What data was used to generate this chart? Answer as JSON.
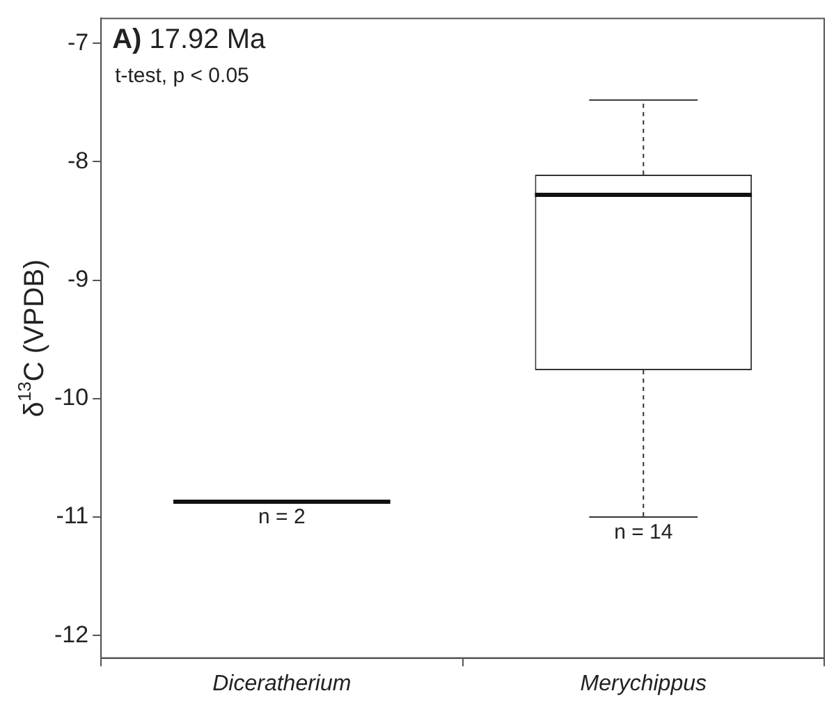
{
  "chart_data": {
    "type": "box",
    "title": "A) 17.92 Ma",
    "ylabel": "δ$^{13}$C (VPDB)",
    "categories": [
      "Diceratherium",
      "Merychippus"
    ],
    "boxes": [
      {
        "low": -10.87,
        "q1": -10.87,
        "median": -10.87,
        "q3": -10.87,
        "high": -10.87
      },
      {
        "low": -11.0,
        "q1": -9.76,
        "median": -8.28,
        "q3": -8.11,
        "high": -7.48
      }
    ],
    "annotations": [
      "t-test, p < 0.05",
      "n = 2",
      "n = 14"
    ],
    "ylim": [
      -12.19,
      -6.79
    ],
    "yticks": [
      -12,
      -11,
      -10,
      -9,
      -8,
      -7
    ],
    "grid": false,
    "legend": false
  }
}
